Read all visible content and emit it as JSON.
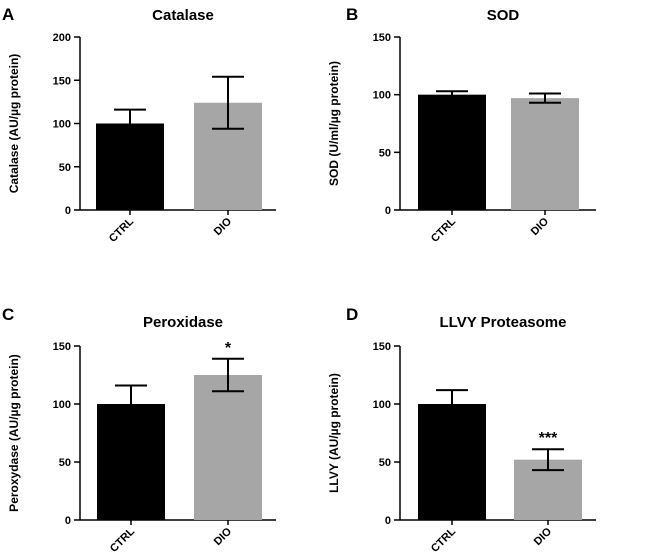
{
  "chart_data": [
    {
      "panel": "A",
      "type": "bar",
      "title": "Catalase",
      "ylabel": "Catalase (AU/µg protein)",
      "categories": [
        "CTRL",
        "DIO"
      ],
      "values": [
        100,
        124
      ],
      "errors": [
        16,
        30
      ],
      "colors": [
        "#000000",
        "#a6a6a6"
      ],
      "ylim": [
        0,
        200
      ],
      "yticks": [
        0,
        50,
        100,
        150,
        200
      ],
      "annotations": [
        "",
        ""
      ]
    },
    {
      "panel": "B",
      "type": "bar",
      "title": "SOD",
      "ylabel": "SOD (U/ml/µg protein)",
      "categories": [
        "CTRL",
        "DIO"
      ],
      "values": [
        100,
        97
      ],
      "errors": [
        3,
        4
      ],
      "colors": [
        "#000000",
        "#a6a6a6"
      ],
      "ylim": [
        0,
        150
      ],
      "yticks": [
        0,
        50,
        100,
        150
      ],
      "annotations": [
        "",
        ""
      ]
    },
    {
      "panel": "C",
      "type": "bar",
      "title": "Peroxidase",
      "ylabel": "Peroxydase (AU/µg protein)",
      "categories": [
        "CTRL",
        "DIO"
      ],
      "values": [
        100,
        125
      ],
      "errors": [
        16,
        14
      ],
      "colors": [
        "#000000",
        "#a6a6a6"
      ],
      "ylim": [
        0,
        150
      ],
      "yticks": [
        0,
        50,
        100,
        150
      ],
      "annotations": [
        "",
        "*"
      ]
    },
    {
      "panel": "D",
      "type": "bar",
      "title": "LLVY Proteasome",
      "ylabel": "LLVY (AU/µg protein)",
      "categories": [
        "CTRL",
        "DIO"
      ],
      "values": [
        100,
        52
      ],
      "errors": [
        12,
        9
      ],
      "colors": [
        "#000000",
        "#a6a6a6"
      ],
      "ylim": [
        0,
        150
      ],
      "yticks": [
        0,
        50,
        100,
        150
      ],
      "annotations": [
        "",
        "***"
      ]
    }
  ]
}
